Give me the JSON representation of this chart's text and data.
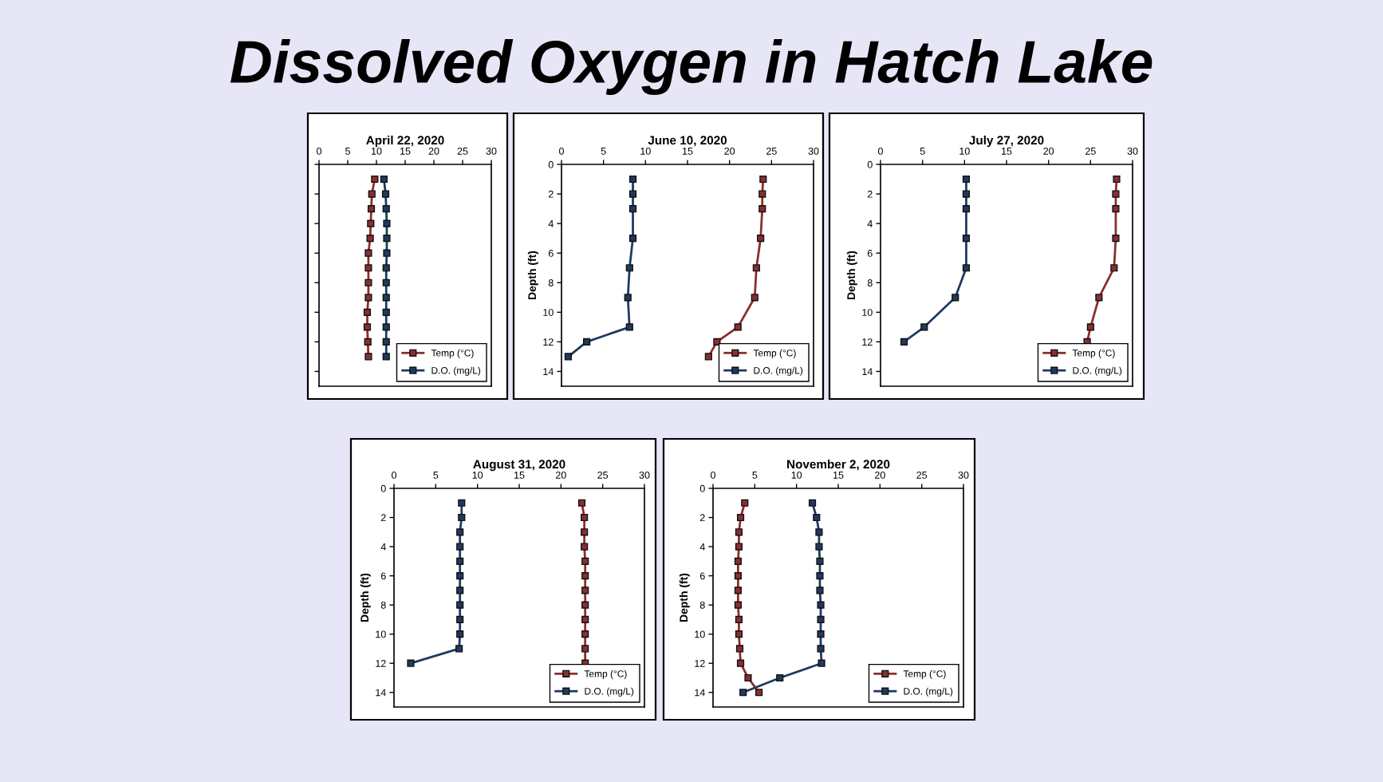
{
  "chart_data": [
    {
      "type": "line",
      "title": "April 22, 2020",
      "tick_labels": "x",
      "annotations": [
        "Dissolved Oxygen in Hatch Lake"
      ],
      "xlim": [
        0,
        30
      ],
      "xticks": [
        0,
        5,
        10,
        15,
        20,
        25,
        30
      ],
      "ylim": [
        15,
        0
      ],
      "yticks": [
        0,
        2,
        4,
        6,
        8,
        10,
        12,
        14
      ],
      "grid": false,
      "legend": "bottom right",
      "marker": "square",
      "line_style": "solid",
      "series": [
        {
          "name": "Temp (°C)",
          "color": "#8b2e2e",
          "x": [
            9.7,
            9.2,
            9.1,
            9.0,
            8.9,
            8.6,
            8.6,
            8.6,
            8.6,
            8.4,
            8.4,
            8.5,
            8.6
          ],
          "values": [
            1,
            2,
            3,
            4,
            5,
            6,
            7,
            8,
            9,
            10,
            11,
            12,
            13
          ]
        },
        {
          "name": "D.O. (mg/L)",
          "color": "#1f3a60",
          "x": [
            11.3,
            11.6,
            11.7,
            11.8,
            11.8,
            11.8,
            11.7,
            11.7,
            11.7,
            11.7,
            11.7,
            11.7,
            11.7
          ],
          "values": [
            1,
            2,
            3,
            4,
            5,
            6,
            7,
            8,
            9,
            10,
            11,
            12,
            13
          ]
        }
      ]
    },
    {
      "type": "line",
      "title": "June 10, 2020",
      "ylabel": "Depth (ft)",
      "xlim": [
        0,
        30
      ],
      "xticks": [
        0,
        5,
        10,
        15,
        20,
        25,
        30
      ],
      "ylim": [
        15,
        0
      ],
      "yticks": [
        0,
        2,
        4,
        6,
        8,
        10,
        12,
        14
      ],
      "grid": false,
      "legend": "bottom right",
      "marker": "square",
      "line_style": "solid",
      "series": [
        {
          "name": "Temp (°C)",
          "color": "#8b2e2e",
          "x": [
            24.0,
            23.9,
            23.9,
            23.7,
            23.2,
            23.0,
            21.0,
            18.5,
            17.5
          ],
          "values": [
            1,
            2,
            3,
            5,
            7,
            9,
            11,
            12,
            13
          ]
        },
        {
          "name": "D.O. (mg/L)",
          "color": "#1f3a60",
          "x": [
            8.5,
            8.5,
            8.5,
            8.5,
            8.1,
            7.9,
            8.1,
            3.0,
            0.8
          ],
          "values": [
            1,
            2,
            3,
            5,
            7,
            9,
            11,
            12,
            13
          ]
        }
      ]
    },
    {
      "type": "line",
      "title": "July 27, 2020",
      "ylabel": "Depth (ft)",
      "xlim": [
        0,
        30
      ],
      "xticks": [
        0,
        5,
        10,
        15,
        20,
        25,
        30
      ],
      "ylim": [
        15,
        0
      ],
      "yticks": [
        0,
        2,
        4,
        6,
        8,
        10,
        12,
        14
      ],
      "grid": false,
      "legend": "bottom right",
      "marker": "square",
      "line_style": "solid",
      "series": [
        {
          "name": "Temp (°C)",
          "color": "#8b2e2e",
          "x": [
            28.1,
            28.0,
            28.0,
            28.0,
            27.8,
            26.0,
            25.0,
            24.6
          ],
          "values": [
            1,
            2,
            3,
            5,
            7,
            9,
            11,
            12
          ]
        },
        {
          "name": "D.O. (mg/L)",
          "color": "#1f3a60",
          "x": [
            10.2,
            10.2,
            10.2,
            10.2,
            10.2,
            8.9,
            5.2,
            2.8
          ],
          "values": [
            1,
            2,
            3,
            5,
            7,
            9,
            11,
            12
          ]
        }
      ]
    },
    {
      "type": "line",
      "title": "August 31, 2020",
      "ylabel": "Depth (ft)",
      "xlim": [
        0,
        30
      ],
      "xticks": [
        0,
        5,
        10,
        15,
        20,
        25,
        30
      ],
      "ylim": [
        15,
        0
      ],
      "yticks": [
        0,
        2,
        4,
        6,
        8,
        10,
        12,
        14
      ],
      "grid": false,
      "legend": "bottom right",
      "marker": "square",
      "line_style": "solid",
      "series": [
        {
          "name": "Temp (°C)",
          "color": "#8b2e2e",
          "x": [
            22.5,
            22.8,
            22.8,
            22.8,
            22.9,
            22.9,
            22.9,
            22.9,
            22.9,
            22.9,
            22.9,
            22.9
          ],
          "values": [
            1,
            2,
            3,
            4,
            5,
            6,
            7,
            8,
            9,
            10,
            11,
            12
          ]
        },
        {
          "name": "D.O. (mg/L)",
          "color": "#1f3a60",
          "x": [
            8.1,
            8.1,
            7.9,
            7.9,
            7.9,
            7.9,
            7.9,
            7.9,
            7.9,
            7.9,
            7.8,
            2.0
          ],
          "values": [
            1,
            2,
            3,
            4,
            5,
            6,
            7,
            8,
            9,
            10,
            11,
            12
          ]
        }
      ]
    },
    {
      "type": "line",
      "title": "November 2, 2020",
      "ylabel": "Depth (ft)",
      "xlim": [
        0,
        30
      ],
      "xticks": [
        0,
        5,
        10,
        15,
        20,
        25,
        30
      ],
      "ylim": [
        15,
        0
      ],
      "yticks": [
        0,
        2,
        4,
        6,
        8,
        10,
        12,
        14
      ],
      "grid": false,
      "legend": "bottom right",
      "marker": "square",
      "line_style": "solid",
      "series": [
        {
          "name": "Temp (°C)",
          "color": "#8b2e2e",
          "x": [
            3.8,
            3.3,
            3.1,
            3.1,
            3.0,
            3.0,
            3.0,
            3.0,
            3.1,
            3.1,
            3.2,
            3.3,
            4.2,
            5.5
          ],
          "values": [
            1,
            2,
            3,
            4,
            5,
            6,
            7,
            8,
            9,
            10,
            11,
            12,
            13,
            14
          ]
        },
        {
          "name": "D.O. (mg/L)",
          "color": "#1f3a60",
          "x": [
            11.9,
            12.4,
            12.7,
            12.7,
            12.8,
            12.8,
            12.8,
            12.9,
            12.9,
            12.9,
            12.9,
            13.0,
            8.0,
            3.6
          ],
          "values": [
            1,
            2,
            3,
            4,
            5,
            6,
            7,
            8,
            9,
            10,
            11,
            12,
            13,
            14
          ]
        }
      ]
    }
  ]
}
